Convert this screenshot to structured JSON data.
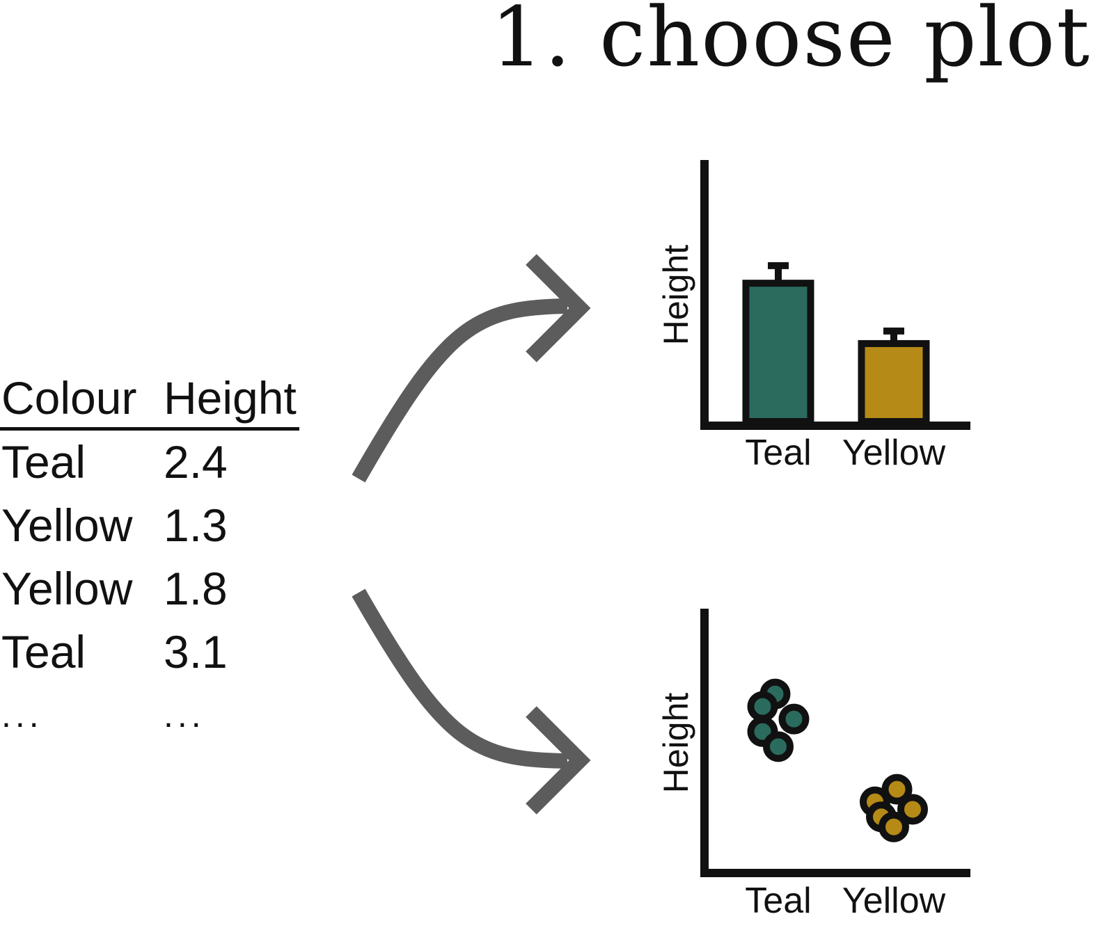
{
  "title": "1. choose plot",
  "table": {
    "headers": [
      "Colour",
      "Height"
    ],
    "rows": [
      [
        "Teal",
        "2.4"
      ],
      [
        "Yellow",
        "1.3"
      ],
      [
        "Yellow",
        "1.8"
      ],
      [
        "Teal",
        "3.1"
      ],
      [
        "...",
        "..."
      ]
    ]
  },
  "colors": {
    "teal": "#2a6b5e",
    "yellow": "#b58a16",
    "arrow": "#5c5c5c",
    "axis": "#111111"
  },
  "chart_data": [
    {
      "type": "bar",
      "categories": [
        "Teal",
        "Yellow"
      ],
      "values": [
        2.75,
        1.55
      ],
      "errors": [
        0.35,
        0.25
      ],
      "ylabel": "Height",
      "ylim": [
        0,
        5.2
      ]
    },
    {
      "type": "scatter",
      "categories": [
        "Teal",
        "Yellow"
      ],
      "series": [
        {
          "category": "Teal",
          "points": [
            [
              -0.05,
              3.5
            ],
            [
              -0.25,
              3.25
            ],
            [
              0.25,
              3.0
            ],
            [
              -0.25,
              2.75
            ],
            [
              0.0,
              2.45
            ]
          ]
        },
        {
          "category": "Yellow",
          "points": [
            [
              0.05,
              1.6
            ],
            [
              -0.3,
              1.35
            ],
            [
              0.3,
              1.2
            ],
            [
              -0.2,
              1.05
            ],
            [
              0.0,
              0.85
            ]
          ]
        }
      ],
      "ylabel": "Height",
      "ylim": [
        0,
        5.2
      ]
    }
  ]
}
